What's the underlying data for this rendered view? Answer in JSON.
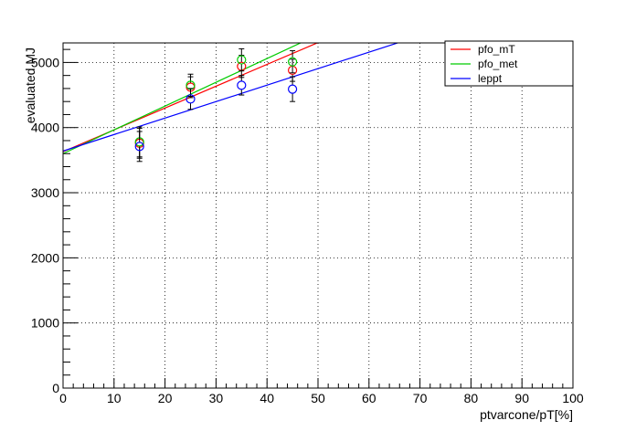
{
  "chart_data": {
    "type": "scatter",
    "title": "",
    "xlabel": "ptvarcone/pT[%]",
    "ylabel": "evaluated MJ",
    "xlim": [
      0,
      100
    ],
    "ylim": [
      0,
      5300
    ],
    "x_ticks": [
      "0",
      "10",
      "20",
      "30",
      "40",
      "50",
      "60",
      "70",
      "80",
      "90",
      "100"
    ],
    "y_ticks": [
      "0",
      "1000",
      "2000",
      "3000",
      "4000",
      "5000"
    ],
    "grid": true,
    "legend_position": "top-right",
    "series": [
      {
        "name": "pfo_mT",
        "color": "#ff0000",
        "points": [
          {
            "x": 15,
            "y": 3760,
            "err": 230
          },
          {
            "x": 25,
            "y": 4620,
            "err": 160
          },
          {
            "x": 35,
            "y": 4940,
            "err": 170
          },
          {
            "x": 45,
            "y": 4880,
            "err": 170
          }
        ],
        "fit": {
          "intercept": 3630,
          "slope": 33.5
        }
      },
      {
        "name": "pfo_met",
        "color": "#00cc00",
        "points": [
          {
            "x": 15,
            "y": 3780,
            "err": 230
          },
          {
            "x": 25,
            "y": 4650,
            "err": 170
          },
          {
            "x": 35,
            "y": 5040,
            "err": 170
          },
          {
            "x": 45,
            "y": 5010,
            "err": 170
          }
        ],
        "fit": {
          "intercept": 3600,
          "slope": 36.5
        }
      },
      {
        "name": "leppt",
        "color": "#0000ff",
        "points": [
          {
            "x": 15,
            "y": 3710,
            "err": 230
          },
          {
            "x": 25,
            "y": 4440,
            "err": 160
          },
          {
            "x": 35,
            "y": 4650,
            "err": 150
          },
          {
            "x": 45,
            "y": 4590,
            "err": 190
          }
        ],
        "fit": {
          "intercept": 3640,
          "slope": 25.3
        }
      }
    ]
  }
}
